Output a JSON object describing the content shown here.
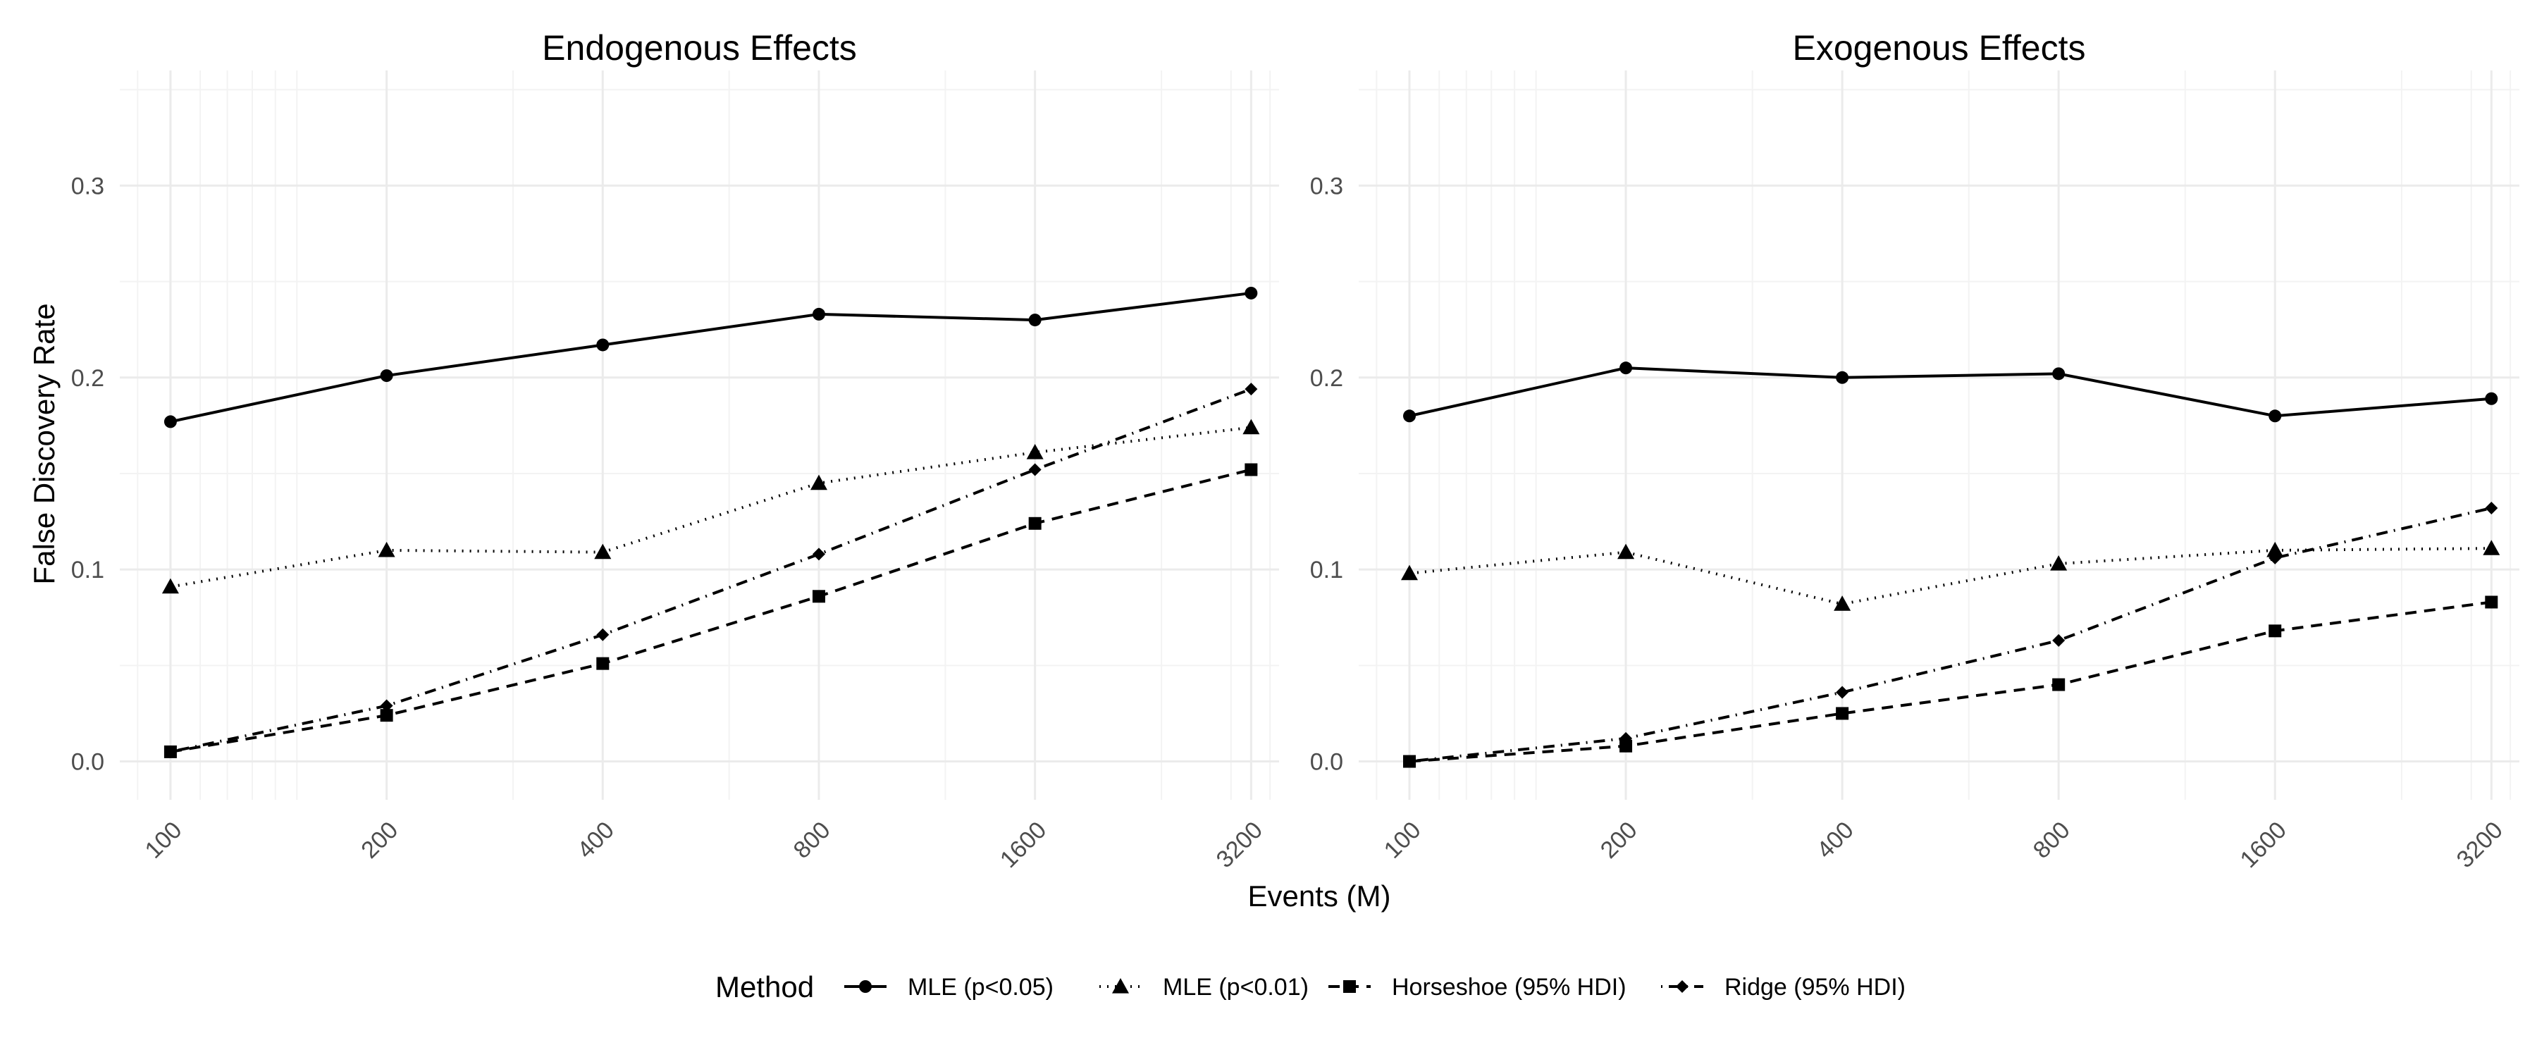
{
  "chart_data": {
    "type": "line",
    "x_label": "Events (M)",
    "y_label": "False Discovery Rate",
    "x_scale": "log",
    "x": [
      100,
      200,
      400,
      800,
      1600,
      3200
    ],
    "x_ticks": [
      "100",
      "200",
      "400",
      "800",
      "1600",
      "3200"
    ],
    "y_ticks": [
      "0.0",
      "0.1",
      "0.2",
      "0.3"
    ],
    "ylim": [
      -0.02,
      0.36
    ],
    "grid": true,
    "legend": {
      "title": "Method",
      "position": "bottom",
      "entries": [
        {
          "label": "MLE (p<0.05)",
          "dash": "solid",
          "marker": "circle"
        },
        {
          "label": "MLE (p<0.01)",
          "dash": "dotted",
          "marker": "triangle"
        },
        {
          "label": "Horseshoe (95% HDI)",
          "dash": "dashed",
          "marker": "square"
        },
        {
          "label": "Ridge (95% HDI)",
          "dash": "dashdot",
          "marker": "diamond"
        }
      ]
    },
    "panels": [
      {
        "title": "Endogenous Effects",
        "series": [
          {
            "name": "MLE (p<0.05)",
            "values": [
              0.177,
              0.201,
              0.217,
              0.233,
              0.23,
              0.244
            ]
          },
          {
            "name": "MLE (p<0.01)",
            "values": [
              0.091,
              0.11,
              0.109,
              0.145,
              0.161,
              0.174
            ]
          },
          {
            "name": "Horseshoe (95% HDI)",
            "values": [
              0.005,
              0.024,
              0.051,
              0.086,
              0.124,
              0.152
            ]
          },
          {
            "name": "Ridge (95% HDI)",
            "values": [
              0.005,
              0.029,
              0.066,
              0.108,
              0.152,
              0.194
            ]
          }
        ]
      },
      {
        "title": "Exogenous Effects",
        "series": [
          {
            "name": "MLE (p<0.05)",
            "values": [
              0.18,
              0.205,
              0.2,
              0.202,
              0.18,
              0.189
            ]
          },
          {
            "name": "MLE (p<0.01)",
            "values": [
              0.098,
              0.109,
              0.082,
              0.103,
              0.11,
              0.111
            ]
          },
          {
            "name": "Horseshoe (95% HDI)",
            "values": [
              0.0,
              0.008,
              0.025,
              0.04,
              0.068,
              0.083
            ]
          },
          {
            "name": "Ridge (95% HDI)",
            "values": [
              0.0,
              0.012,
              0.036,
              0.063,
              0.106,
              0.132
            ]
          }
        ]
      }
    ]
  }
}
